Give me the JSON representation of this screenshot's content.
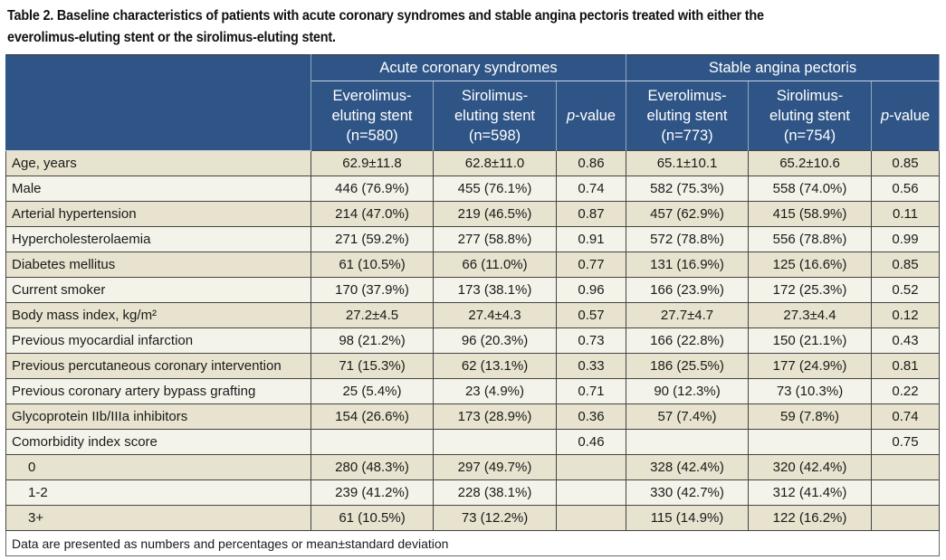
{
  "caption": {
    "line1": "Table 2. Baseline characteristics of patients with acute coronary syndromes and stable angina pectoris treated with either the",
    "line2": "everolimus-eluting stent or the sirolimus-eluting stent."
  },
  "header": {
    "groups": [
      "Acute coronary syndromes",
      "Stable angina pectoris"
    ],
    "columns": [
      {
        "line1": "Everolimus-",
        "line2": "eluting stent",
        "line3": "(n=580)"
      },
      {
        "line1": "Sirolimus-",
        "line2": "eluting stent",
        "line3": "(n=598)"
      },
      {
        "p": "p",
        "rest": "-value"
      },
      {
        "line1": "Everolimus-",
        "line2": "eluting stent",
        "line3": "(n=773)"
      },
      {
        "line1": "Sirolimus-",
        "line2": "eluting stent",
        "line3": "(n=754)"
      },
      {
        "p": "p",
        "rest": "-value"
      }
    ]
  },
  "rows": [
    {
      "label": "Age, years",
      "v": [
        "62.9±11.8",
        "62.8±11.0",
        "0.86",
        "65.1±10.1",
        "65.2±10.6",
        "0.85"
      ]
    },
    {
      "label": "Male",
      "v": [
        "446 (76.9%)",
        "455 (76.1%)",
        "0.74",
        "582 (75.3%)",
        "558 (74.0%)",
        "0.56"
      ]
    },
    {
      "label": "Arterial hypertension",
      "v": [
        "214 (47.0%)",
        "219 (46.5%)",
        "0.87",
        "457 (62.9%)",
        "415 (58.9%)",
        "0.11"
      ]
    },
    {
      "label": "Hypercholesterolaemia",
      "v": [
        "271 (59.2%)",
        "277 (58.8%)",
        "0.91",
        "572 (78.8%)",
        "556 (78.8%)",
        "0.99"
      ]
    },
    {
      "label": "Diabetes mellitus",
      "v": [
        "61 (10.5%)",
        "66 (11.0%)",
        "0.77",
        "131 (16.9%)",
        "125 (16.6%)",
        "0.85"
      ]
    },
    {
      "label": "Current smoker",
      "v": [
        "170 (37.9%)",
        "173 (38.1%)",
        "0.96",
        "166 (23.9%)",
        "172 (25.3%)",
        "0.52"
      ]
    },
    {
      "label": "Body mass index, kg/m²",
      "v": [
        "27.2±4.5",
        "27.4±4.3",
        "0.57",
        "27.7±4.7",
        "27.3±4.4",
        "0.12"
      ]
    },
    {
      "label": "Previous myocardial infarction",
      "v": [
        "98 (21.2%)",
        "96 (20.3%)",
        "0.73",
        "166 (22.8%)",
        "150 (21.1%)",
        "0.43"
      ]
    },
    {
      "label": "Previous percutaneous coronary intervention",
      "v": [
        "71 (15.3%)",
        "62 (13.1%)",
        "0.33",
        "186 (25.5%)",
        "177 (24.9%)",
        "0.81"
      ]
    },
    {
      "label": "Previous coronary artery bypass grafting",
      "v": [
        "25 (5.4%)",
        "23 (4.9%)",
        "0.71",
        "90 (12.3%)",
        "73 (10.3%)",
        "0.22"
      ]
    },
    {
      "label": "Glycoprotein IIb/IIIa inhibitors",
      "v": [
        "154 (26.6%)",
        "173 (28.9%)",
        "0.36",
        "57 (7.4%)",
        "59 (7.8%)",
        "0.74"
      ]
    },
    {
      "label": "Comorbidity index score",
      "v": [
        "",
        "",
        "0.46",
        "",
        "",
        "0.75"
      ]
    },
    {
      "label": "0",
      "v": [
        "280 (48.3%)",
        "297 (49.7%)",
        "",
        "328 (42.4%)",
        "320 (42.4%)",
        ""
      ]
    },
    {
      "label": "1-2",
      "v": [
        "239 (41.2%)",
        "228 (38.1%)",
        "",
        "330 (42.7%)",
        "312 (41.4%)",
        ""
      ]
    },
    {
      "label": "3+",
      "v": [
        "61 (10.5%)",
        "73 (12.2%)",
        "",
        "115 (14.9%)",
        "122 (16.2%)",
        ""
      ]
    }
  ],
  "footnote": "Data are presented as numbers and percentages or mean±standard deviation",
  "colors": {
    "header": "#2f5587",
    "row_odd": "#e7e3ce",
    "row_even": "#f4f3ea"
  }
}
